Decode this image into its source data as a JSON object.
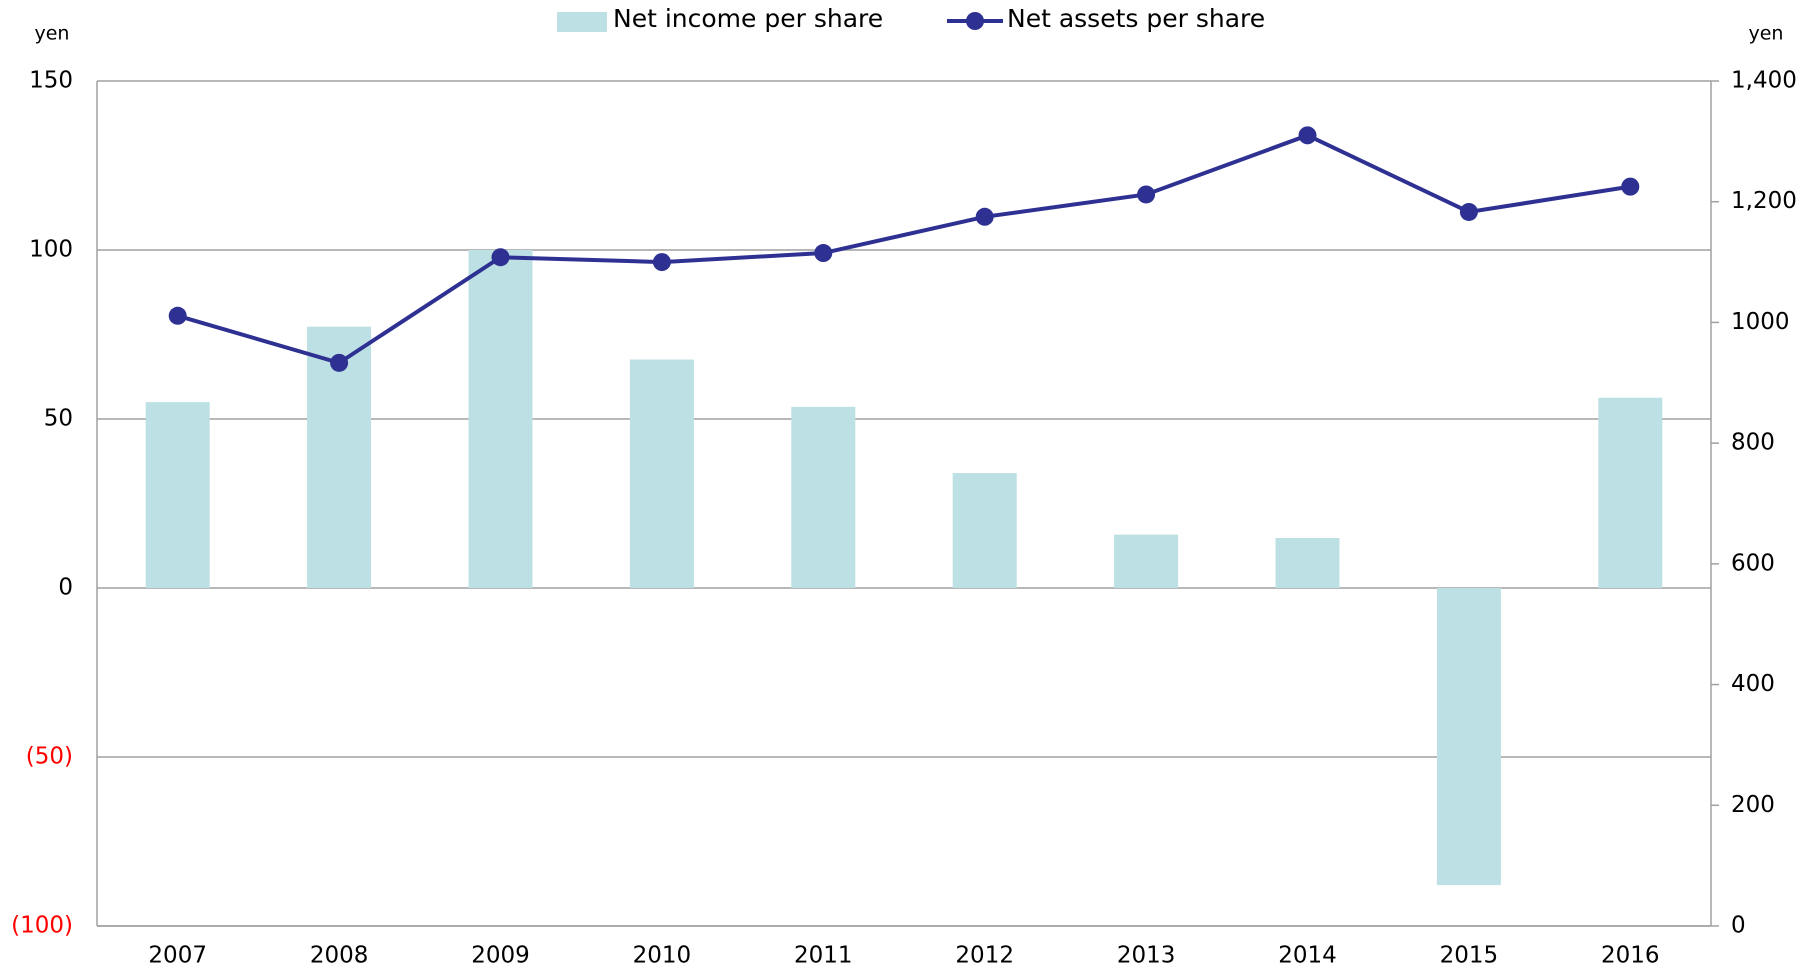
{
  "chart_data": {
    "type": "bar_line",
    "categories": [
      "2007",
      "2008",
      "2009",
      "2010",
      "2011",
      "2012",
      "2013",
      "2014",
      "2015",
      "2016"
    ],
    "series": [
      {
        "name": "Net income per share",
        "type": "bar",
        "color": "#bce0e3",
        "values": [
          55,
          77.3,
          100,
          67.6,
          53.6,
          34,
          15.8,
          14.8,
          -87.9,
          56.3
        ]
      },
      {
        "name": "Net assets per share",
        "type": "line",
        "axis": "y2",
        "color": "#2e3192",
        "values": [
          1011,
          933,
          1108,
          1100,
          1115,
          1175,
          1212,
          1310,
          1183,
          1225
        ]
      }
    ],
    "ylabel": "yen",
    "y2label": "yen",
    "ylim": [
      -100,
      150
    ],
    "yticks": [
      {
        "value": -100,
        "label": "(100)"
      },
      {
        "value": -50,
        "label": "(50)"
      },
      0,
      50,
      100,
      150
    ],
    "y2lim": [
      0,
      1400
    ],
    "y2ticks": [
      0,
      200,
      400,
      600,
      800,
      1000,
      {
        "value": 1200,
        "label": "1,200"
      },
      {
        "value": 1400,
        "label": "1,400"
      }
    ],
    "negative_tick_color": "#ff0000",
    "grid": true,
    "legend": "top"
  }
}
